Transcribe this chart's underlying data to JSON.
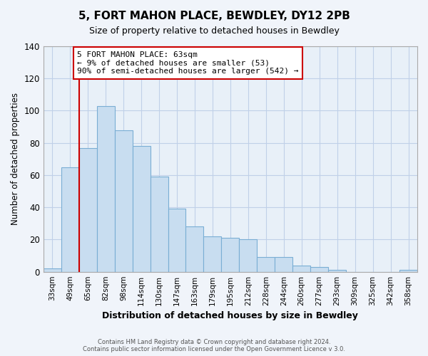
{
  "title": "5, FORT MAHON PLACE, BEWDLEY, DY12 2PB",
  "subtitle": "Size of property relative to detached houses in Bewdley",
  "xlabel": "Distribution of detached houses by size in Bewdley",
  "ylabel": "Number of detached properties",
  "bar_labels": [
    "33sqm",
    "49sqm",
    "65sqm",
    "82sqm",
    "98sqm",
    "114sqm",
    "130sqm",
    "147sqm",
    "163sqm",
    "179sqm",
    "195sqm",
    "212sqm",
    "228sqm",
    "244sqm",
    "260sqm",
    "277sqm",
    "293sqm",
    "309sqm",
    "325sqm",
    "342sqm",
    "358sqm"
  ],
  "bar_heights": [
    2,
    65,
    77,
    103,
    88,
    78,
    59,
    39,
    28,
    22,
    21,
    20,
    9,
    9,
    4,
    3,
    1,
    0,
    0,
    0,
    1
  ],
  "bar_color": "#c8ddf0",
  "bar_edge_color": "#7aaed4",
  "vline_x": 2,
  "vline_color": "#cc0000",
  "ylim": [
    0,
    140
  ],
  "yticks": [
    0,
    20,
    40,
    60,
    80,
    100,
    120,
    140
  ],
  "annotation_text": "5 FORT MAHON PLACE: 63sqm\n← 9% of detached houses are smaller (53)\n90% of semi-detached houses are larger (542) →",
  "annotation_box_color": "#ffffff",
  "annotation_box_edge": "#cc0000",
  "footer1": "Contains HM Land Registry data © Crown copyright and database right 2024.",
  "footer2": "Contains public sector information licensed under the Open Government Licence v 3.0.",
  "background_color": "#f0f4fa",
  "plot_bg_color": "#e8f0f8",
  "grid_color": "#c0d0e8"
}
